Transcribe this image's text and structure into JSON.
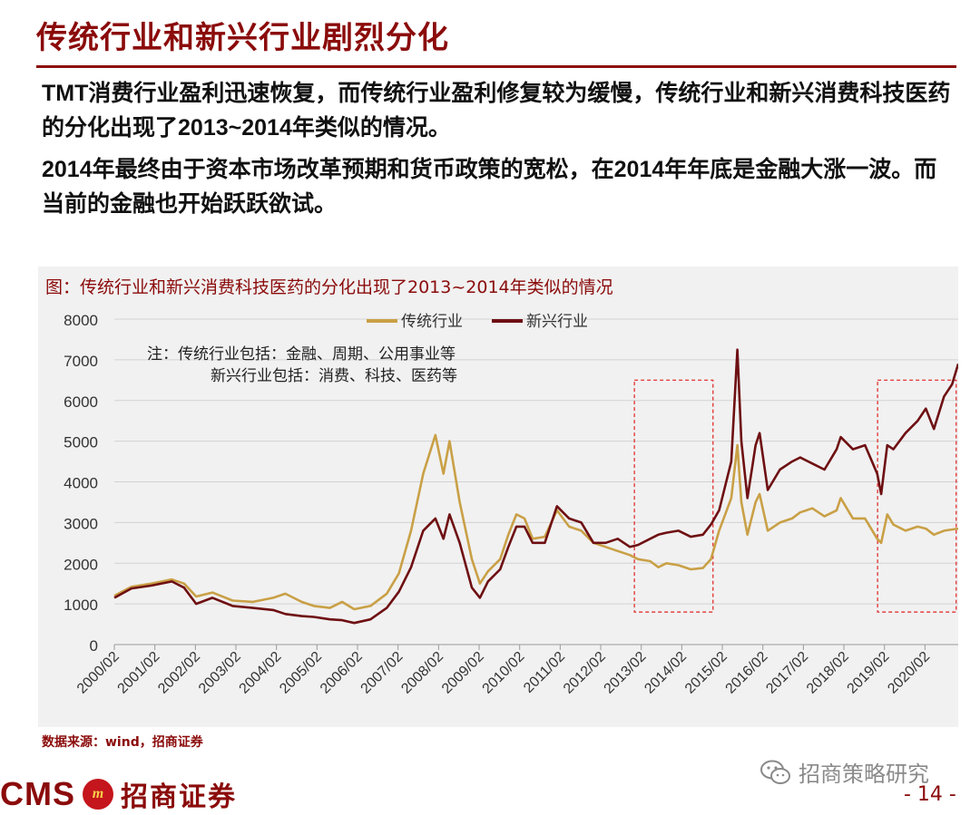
{
  "slide": {
    "title": "传统行业和新兴行业剧烈分化",
    "para1_a": "TMT",
    "para1_b": "消费行业盈利迅速恢复，而传统行业盈利修复较为缓慢，传统行业和新兴消费科技医药的分化出现了",
    "para1_c": "2013~2014",
    "para1_d": "年类似的情况。",
    "para2_a": "2014",
    "para2_b": "年最终由于资本市场改革预期和货币政策的宽松，在",
    "para2_c": "2014",
    "para2_d": "年年底是金融大涨一波。而当前的金融也开始跃跃欲试。",
    "source": "数据来源：wind，招商证券",
    "brand_latin": "CMS",
    "brand_cn": "招商证券",
    "brand_mark": "m",
    "wechat": "招商策略研究",
    "page": "- 14 -"
  },
  "colors": {
    "accent": "#8b0b0b",
    "traditional": "#c9a046",
    "emerging": "#6e0f12",
    "highlight_box": "#e02020"
  },
  "chart_data": {
    "type": "line",
    "title": "图：传统行业和新兴消费科技医药的分化出现了2013~2014年类似的情况",
    "note_line1": "注：传统行业包括：金融、周期、公用事业等",
    "note_line2": "新兴行业包括：消费、科技、医药等",
    "legend_position": "top-center",
    "grid": true,
    "ylim": [
      0,
      8000
    ],
    "yticks": [
      0,
      1000,
      2000,
      3000,
      4000,
      5000,
      6000,
      7000,
      8000
    ],
    "xlim": [
      2000.08,
      2020.9
    ],
    "xtick_labels": [
      "2000/02",
      "2001/02",
      "2002/02",
      "2003/02",
      "2004/02",
      "2005/02",
      "2006/02",
      "2007/02",
      "2008/02",
      "2009/02",
      "2010/02",
      "2011/02",
      "2012/02",
      "2013/02",
      "2014/02",
      "2015/02",
      "2016/02",
      "2017/02",
      "2018/02",
      "2019/02",
      "2020/02"
    ],
    "highlight_ranges": [
      [
        2013.0,
        2014.85
      ],
      [
        2019.0,
        2020.85
      ]
    ],
    "series": [
      {
        "name": "传统行业",
        "points": [
          [
            2000.08,
            1200
          ],
          [
            2000.5,
            1420
          ],
          [
            2001.0,
            1500
          ],
          [
            2001.5,
            1600
          ],
          [
            2001.8,
            1500
          ],
          [
            2002.1,
            1180
          ],
          [
            2002.5,
            1280
          ],
          [
            2003.0,
            1080
          ],
          [
            2003.5,
            1050
          ],
          [
            2004.0,
            1150
          ],
          [
            2004.3,
            1250
          ],
          [
            2004.7,
            1050
          ],
          [
            2005.0,
            950
          ],
          [
            2005.4,
            900
          ],
          [
            2005.7,
            1050
          ],
          [
            2006.0,
            870
          ],
          [
            2006.4,
            950
          ],
          [
            2006.8,
            1250
          ],
          [
            2007.1,
            1750
          ],
          [
            2007.4,
            2800
          ],
          [
            2007.7,
            4200
          ],
          [
            2008.0,
            5150
          ],
          [
            2008.2,
            4200
          ],
          [
            2008.35,
            5000
          ],
          [
            2008.6,
            3500
          ],
          [
            2008.9,
            2100
          ],
          [
            2009.1,
            1500
          ],
          [
            2009.3,
            1800
          ],
          [
            2009.6,
            2100
          ],
          [
            2009.8,
            2700
          ],
          [
            2010.0,
            3200
          ],
          [
            2010.2,
            3100
          ],
          [
            2010.4,
            2600
          ],
          [
            2010.7,
            2650
          ],
          [
            2011.0,
            3300
          ],
          [
            2011.3,
            2900
          ],
          [
            2011.6,
            2800
          ],
          [
            2011.9,
            2500
          ],
          [
            2012.2,
            2400
          ],
          [
            2012.5,
            2300
          ],
          [
            2012.8,
            2200
          ],
          [
            2013.0,
            2100
          ],
          [
            2013.3,
            2050
          ],
          [
            2013.5,
            1900
          ],
          [
            2013.7,
            2000
          ],
          [
            2014.0,
            1950
          ],
          [
            2014.3,
            1850
          ],
          [
            2014.6,
            1880
          ],
          [
            2014.8,
            2100
          ],
          [
            2015.0,
            2800
          ],
          [
            2015.3,
            3600
          ],
          [
            2015.45,
            4900
          ],
          [
            2015.55,
            3500
          ],
          [
            2015.7,
            2700
          ],
          [
            2015.9,
            3500
          ],
          [
            2016.0,
            3700
          ],
          [
            2016.2,
            2800
          ],
          [
            2016.5,
            3000
          ],
          [
            2016.8,
            3100
          ],
          [
            2017.0,
            3250
          ],
          [
            2017.3,
            3350
          ],
          [
            2017.6,
            3150
          ],
          [
            2017.9,
            3300
          ],
          [
            2018.0,
            3600
          ],
          [
            2018.3,
            3100
          ],
          [
            2018.6,
            3100
          ],
          [
            2018.9,
            2600
          ],
          [
            2019.0,
            2500
          ],
          [
            2019.15,
            3200
          ],
          [
            2019.3,
            2950
          ],
          [
            2019.6,
            2800
          ],
          [
            2019.9,
            2900
          ],
          [
            2020.1,
            2850
          ],
          [
            2020.3,
            2700
          ],
          [
            2020.55,
            2800
          ],
          [
            2020.9,
            2850
          ]
        ]
      },
      {
        "name": "新兴行业",
        "points": [
          [
            2000.08,
            1150
          ],
          [
            2000.5,
            1380
          ],
          [
            2001.0,
            1450
          ],
          [
            2001.5,
            1550
          ],
          [
            2001.8,
            1400
          ],
          [
            2002.1,
            1000
          ],
          [
            2002.5,
            1150
          ],
          [
            2003.0,
            950
          ],
          [
            2003.5,
            900
          ],
          [
            2004.0,
            850
          ],
          [
            2004.3,
            750
          ],
          [
            2004.7,
            700
          ],
          [
            2005.0,
            680
          ],
          [
            2005.4,
            620
          ],
          [
            2005.7,
            600
          ],
          [
            2006.0,
            530
          ],
          [
            2006.4,
            620
          ],
          [
            2006.8,
            900
          ],
          [
            2007.1,
            1300
          ],
          [
            2007.4,
            1900
          ],
          [
            2007.7,
            2800
          ],
          [
            2008.0,
            3100
          ],
          [
            2008.2,
            2600
          ],
          [
            2008.35,
            3200
          ],
          [
            2008.6,
            2500
          ],
          [
            2008.9,
            1400
          ],
          [
            2009.1,
            1150
          ],
          [
            2009.3,
            1550
          ],
          [
            2009.6,
            1850
          ],
          [
            2009.8,
            2400
          ],
          [
            2010.0,
            2900
          ],
          [
            2010.2,
            2900
          ],
          [
            2010.4,
            2500
          ],
          [
            2010.7,
            2500
          ],
          [
            2011.0,
            3400
          ],
          [
            2011.3,
            3100
          ],
          [
            2011.6,
            3000
          ],
          [
            2011.9,
            2500
          ],
          [
            2012.2,
            2500
          ],
          [
            2012.5,
            2600
          ],
          [
            2012.8,
            2400
          ],
          [
            2013.0,
            2450
          ],
          [
            2013.3,
            2600
          ],
          [
            2013.5,
            2700
          ],
          [
            2013.7,
            2750
          ],
          [
            2014.0,
            2800
          ],
          [
            2014.3,
            2650
          ],
          [
            2014.6,
            2700
          ],
          [
            2014.8,
            2950
          ],
          [
            2015.0,
            3300
          ],
          [
            2015.3,
            4500
          ],
          [
            2015.45,
            7250
          ],
          [
            2015.55,
            5000
          ],
          [
            2015.7,
            3600
          ],
          [
            2015.9,
            4900
          ],
          [
            2016.0,
            5200
          ],
          [
            2016.2,
            3800
          ],
          [
            2016.5,
            4300
          ],
          [
            2016.8,
            4500
          ],
          [
            2017.0,
            4600
          ],
          [
            2017.3,
            4450
          ],
          [
            2017.6,
            4300
          ],
          [
            2017.9,
            4800
          ],
          [
            2018.0,
            5100
          ],
          [
            2018.3,
            4800
          ],
          [
            2018.6,
            4900
          ],
          [
            2018.9,
            4200
          ],
          [
            2019.0,
            3700
          ],
          [
            2019.15,
            4900
          ],
          [
            2019.3,
            4800
          ],
          [
            2019.6,
            5200
          ],
          [
            2019.9,
            5500
          ],
          [
            2020.1,
            5800
          ],
          [
            2020.3,
            5300
          ],
          [
            2020.55,
            6100
          ],
          [
            2020.75,
            6400
          ],
          [
            2020.9,
            6900
          ]
        ]
      }
    ]
  }
}
